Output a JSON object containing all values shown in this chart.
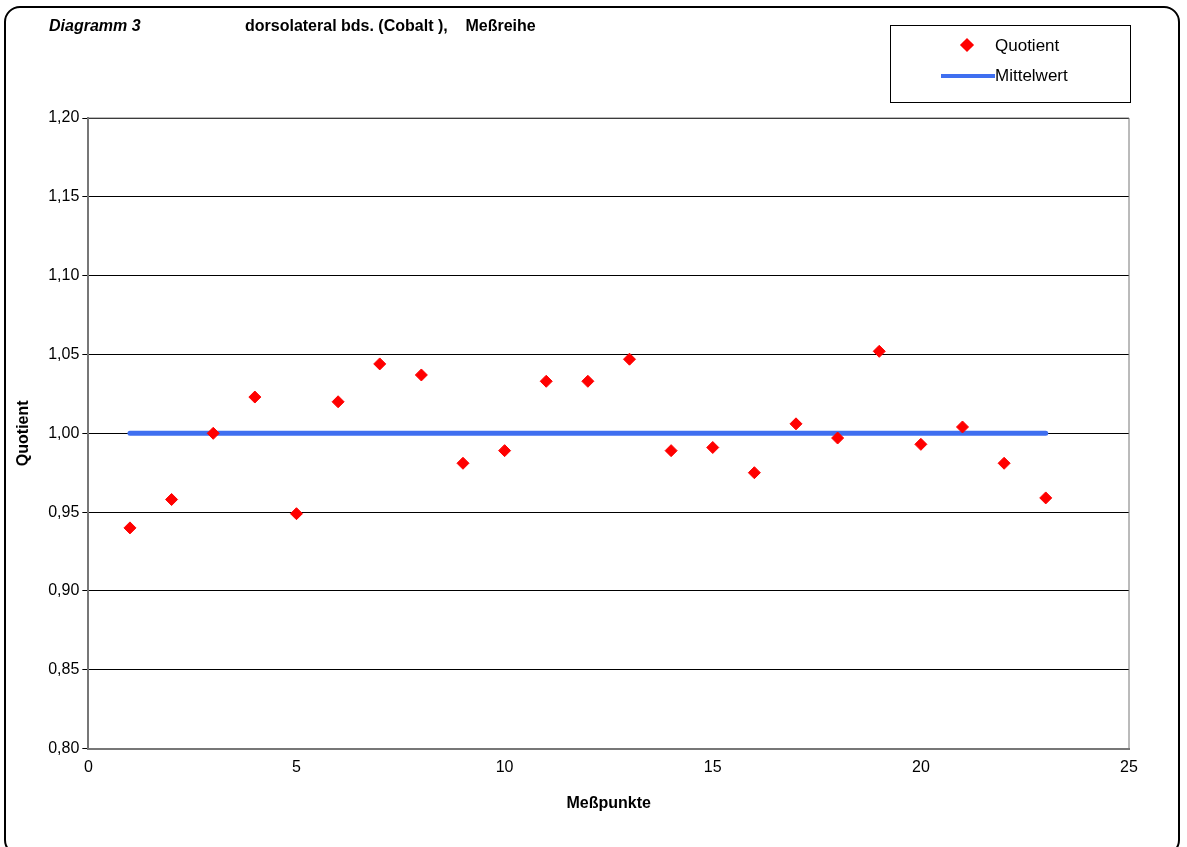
{
  "chart_data": {
    "type": "scatter",
    "title": "Diagramm 3",
    "subtitle": "dorsolateral bds. (Cobalt ),    Meßreihe",
    "xlabel": "Meßpunkte",
    "ylabel": "Quotient",
    "xlim": [
      0,
      25
    ],
    "xticks": [
      0,
      5,
      10,
      15,
      20,
      25
    ],
    "ylim": [
      0.8,
      1.2
    ],
    "yticks": [
      {
        "value": 0.8,
        "label": "0,80"
      },
      {
        "value": 0.85,
        "label": "0,85"
      },
      {
        "value": 0.9,
        "label": "0,90"
      },
      {
        "value": 0.95,
        "label": "0,95"
      },
      {
        "value": 1.0,
        "label": "1,00"
      },
      {
        "value": 1.05,
        "label": "1,05"
      },
      {
        "value": 1.1,
        "label": "1,10"
      },
      {
        "value": 1.15,
        "label": "1,15"
      },
      {
        "value": 1.2,
        "label": "1,20"
      }
    ],
    "grid": "y",
    "legend": "top right",
    "series": [
      {
        "name": "Quotient",
        "type": "scatter",
        "marker": "diamond",
        "color": "#ff0000",
        "x": [
          1,
          2,
          3,
          4,
          5,
          6,
          7,
          8,
          9,
          10,
          11,
          12,
          13,
          14,
          15,
          16,
          17,
          18,
          19,
          20,
          21,
          22,
          23
        ],
        "values": [
          0.94,
          0.958,
          1.0,
          1.023,
          0.949,
          1.02,
          1.044,
          1.037,
          0.981,
          0.989,
          1.033,
          1.033,
          1.047,
          0.989,
          0.991,
          0.975,
          1.006,
          0.997,
          1.052,
          0.993,
          1.004,
          0.981,
          0.959
        ]
      },
      {
        "name": "Mittelwert",
        "type": "line",
        "marker": "none",
        "line_style": "solid",
        "color": "#3f6ff0",
        "x": [
          1,
          23
        ],
        "values": [
          1.0,
          1.0
        ]
      }
    ]
  }
}
